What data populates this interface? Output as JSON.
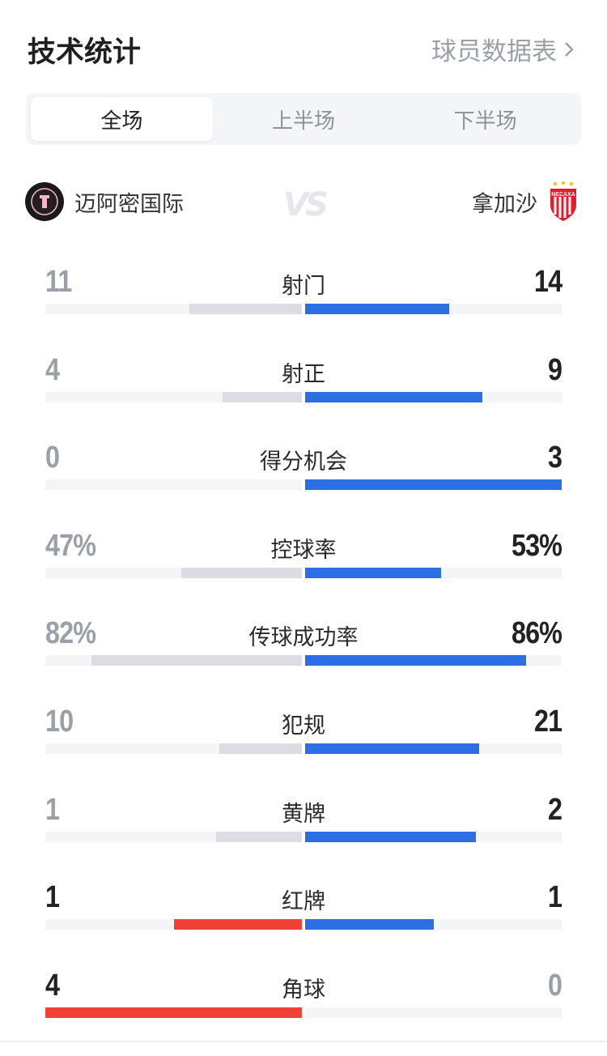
{
  "header": {
    "title": "技术统计",
    "player_link": "球员数据表",
    "chevron_icon": "chevron-right-icon"
  },
  "tabs": [
    {
      "label": "全场",
      "active": true
    },
    {
      "label": "上半场",
      "active": false
    },
    {
      "label": "下半场",
      "active": false
    }
  ],
  "teams": {
    "home": {
      "name": "迈阿密国际",
      "logo": "inter-miami-crest-icon"
    },
    "away": {
      "name": "拿加沙",
      "logo": "necaxa-crest-icon"
    },
    "vs_icon": "vs-icon"
  },
  "colors": {
    "home": "#ef4136",
    "away": "#2b6fe3",
    "loser_bar": "#dcdde2",
    "track": "#f4f5f7",
    "winner_text": "#222222",
    "loser_text": "#9aa0a8"
  },
  "stats": [
    {
      "label": "射门",
      "home": "11",
      "away": "14",
      "home_value": 11,
      "away_value": 14,
      "percent": false
    },
    {
      "label": "射正",
      "home": "4",
      "away": "9",
      "home_value": 4,
      "away_value": 9,
      "percent": false
    },
    {
      "label": "得分机会",
      "home": "0",
      "away": "3",
      "home_value": 0,
      "away_value": 3,
      "percent": false
    },
    {
      "label": "控球率",
      "home": "47%",
      "away": "53%",
      "home_value": 47,
      "away_value": 53,
      "percent": true
    },
    {
      "label": "传球成功率",
      "home": "82%",
      "away": "86%",
      "home_value": 82,
      "away_value": 86,
      "percent": true
    },
    {
      "label": "犯规",
      "home": "10",
      "away": "21",
      "home_value": 10,
      "away_value": 21,
      "percent": false
    },
    {
      "label": "黄牌",
      "home": "1",
      "away": "2",
      "home_value": 1,
      "away_value": 2,
      "percent": false
    },
    {
      "label": "红牌",
      "home": "1",
      "away": "1",
      "home_value": 1,
      "away_value": 1,
      "percent": false
    },
    {
      "label": "角球",
      "home": "4",
      "away": "0",
      "home_value": 4,
      "away_value": 0,
      "percent": false
    }
  ]
}
